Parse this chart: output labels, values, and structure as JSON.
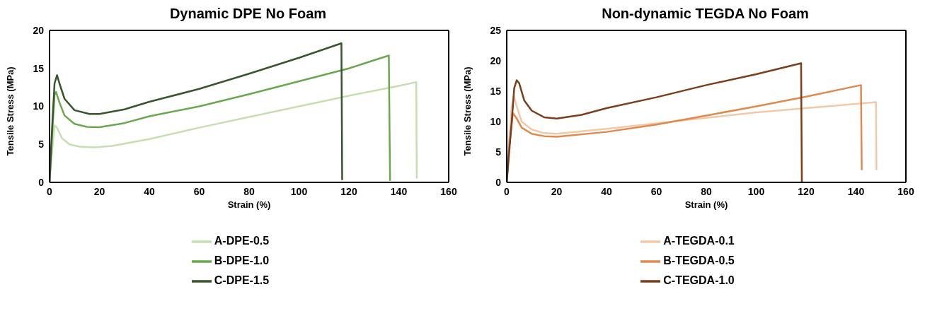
{
  "chart_data": [
    {
      "type": "line",
      "title": "Dynamic DPE No Foam",
      "xlabel": "Strain (%)",
      "ylabel": "Tensile Stress (MPa)",
      "xlim": [
        0,
        160
      ],
      "xticks": [
        0,
        20,
        40,
        60,
        80,
        100,
        120,
        140,
        160
      ],
      "ylim": [
        0,
        20
      ],
      "yticks": [
        0,
        5,
        10,
        15,
        20
      ],
      "grid": false,
      "legend": "bottom",
      "marker": "none",
      "line_style": "solid",
      "series": [
        {
          "name": "A-DPE-0.5",
          "color": "#c5dfb0",
          "x": [
            0,
            1,
            2,
            3,
            5,
            8,
            12,
            18,
            25,
            40,
            60,
            80,
            100,
            120,
            140,
            147,
            147.2
          ],
          "values": [
            0,
            4,
            7.5,
            7.2,
            5.8,
            5.0,
            4.7,
            4.6,
            4.8,
            5.7,
            7.2,
            8.6,
            10.0,
            11.4,
            12.7,
            13.2,
            0.5
          ]
        },
        {
          "name": "B-DPE-1.0",
          "color": "#6aa84f",
          "x": [
            0,
            1,
            2,
            2.6,
            4,
            6,
            10,
            15,
            20,
            30,
            40,
            60,
            80,
            100,
            120,
            136,
            136.5
          ],
          "values": [
            0,
            6,
            11.5,
            11.9,
            10.5,
            8.8,
            7.7,
            7.3,
            7.25,
            7.8,
            8.7,
            10.0,
            11.6,
            13.3,
            15.0,
            16.7,
            0.2
          ]
        },
        {
          "name": "C-DPE-1.5",
          "color": "#38552b",
          "x": [
            0,
            1,
            2,
            3,
            4,
            6,
            10,
            16,
            20,
            30,
            40,
            60,
            80,
            100,
            117,
            117.3
          ],
          "values": [
            0,
            7,
            13,
            14.1,
            13,
            11,
            9.5,
            9.0,
            9.0,
            9.6,
            10.6,
            12.3,
            14.3,
            16.4,
            18.3,
            0.3
          ]
        }
      ]
    },
    {
      "type": "line",
      "title": "Non-dynamic TEGDA No Foam",
      "xlabel": "Strain (%)",
      "ylabel": "Tensile Stress (MPa)",
      "xlim": [
        0,
        160
      ],
      "xticks": [
        0,
        20,
        40,
        60,
        80,
        100,
        120,
        140,
        160
      ],
      "ylim": [
        0,
        25
      ],
      "yticks": [
        0,
        5,
        10,
        15,
        20,
        25
      ],
      "grid": false,
      "legend": "bottom",
      "marker": "none",
      "line_style": "solid",
      "series": [
        {
          "name": "A-TEGDA-0.1",
          "color": "#f2c9a8",
          "x": [
            0,
            1,
            2,
            3,
            4,
            6,
            10,
            15,
            20,
            40,
            60,
            80,
            100,
            120,
            140,
            148,
            148.2
          ],
          "values": [
            0,
            7,
            12.5,
            14,
            12.5,
            10,
            8.7,
            8.1,
            8.0,
            8.8,
            9.7,
            10.6,
            11.5,
            12.2,
            12.9,
            13.2,
            2
          ]
        },
        {
          "name": "B-TEGDA-0.5",
          "color": "#e0894d",
          "x": [
            0,
            1,
            2.5,
            4,
            6,
            10,
            15,
            20,
            40,
            60,
            80,
            100,
            120,
            142,
            142.3
          ],
          "values": [
            0,
            6,
            11.4,
            10.5,
            9,
            8,
            7.6,
            7.5,
            8.3,
            9.5,
            11.0,
            12.5,
            14.1,
            16.0,
            2
          ]
        },
        {
          "name": "C-TEGDA-1.0",
          "color": "#7a3f1a",
          "x": [
            0,
            2,
            3,
            4,
            5,
            7,
            10,
            15,
            20,
            30,
            40,
            60,
            80,
            100,
            118,
            118.3
          ],
          "values": [
            0,
            10,
            15.5,
            16.8,
            16.3,
            13.5,
            11.8,
            10.7,
            10.5,
            11.1,
            12.2,
            14.0,
            16.0,
            17.8,
            19.6,
            0
          ]
        }
      ]
    }
  ]
}
